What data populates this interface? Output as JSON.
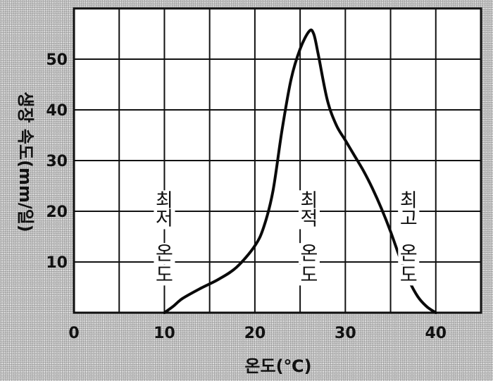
{
  "chart_data": {
    "type": "line",
    "xlabel": "온도(℃)",
    "ylabel": "생장 속도(mm/일)",
    "title": "",
    "xlim": [
      0,
      45
    ],
    "ylim": [
      0,
      60
    ],
    "x_ticks": [
      "0",
      "10",
      "20",
      "30",
      "40"
    ],
    "y_ticks": [
      "10",
      "20",
      "30",
      "40",
      "50"
    ],
    "grid": true,
    "series": [
      {
        "points": [
          [
            10,
            0
          ],
          [
            11,
            1.3
          ],
          [
            12,
            2.8
          ],
          [
            14,
            4.8
          ],
          [
            16,
            6.6
          ],
          [
            18,
            9.0
          ],
          [
            20,
            13.2
          ],
          [
            21,
            17.0
          ],
          [
            22,
            24.0
          ],
          [
            23,
            36.0
          ],
          [
            24,
            46.0
          ],
          [
            25,
            52.0
          ],
          [
            26,
            55.5
          ],
          [
            26.5,
            55.0
          ],
          [
            27,
            51.0
          ],
          [
            28,
            42.0
          ],
          [
            29,
            37.0
          ],
          [
            30,
            34.0
          ],
          [
            31,
            31.0
          ],
          [
            32,
            28.0
          ],
          [
            33,
            24.5
          ],
          [
            34,
            20.5
          ],
          [
            35,
            16.0
          ],
          [
            36,
            11.0
          ],
          [
            37,
            6.5
          ],
          [
            38,
            3.2
          ],
          [
            39,
            1.2
          ],
          [
            40,
            0
          ]
        ]
      }
    ],
    "annotations": [
      {
        "x": 10,
        "lines": [
          "최",
          "저",
          "온",
          "도"
        ]
      },
      {
        "x": 26,
        "lines": [
          "최",
          "적",
          "온",
          "도"
        ]
      },
      {
        "x": 37,
        "lines": [
          "최",
          "고",
          "온",
          "도"
        ]
      }
    ]
  }
}
